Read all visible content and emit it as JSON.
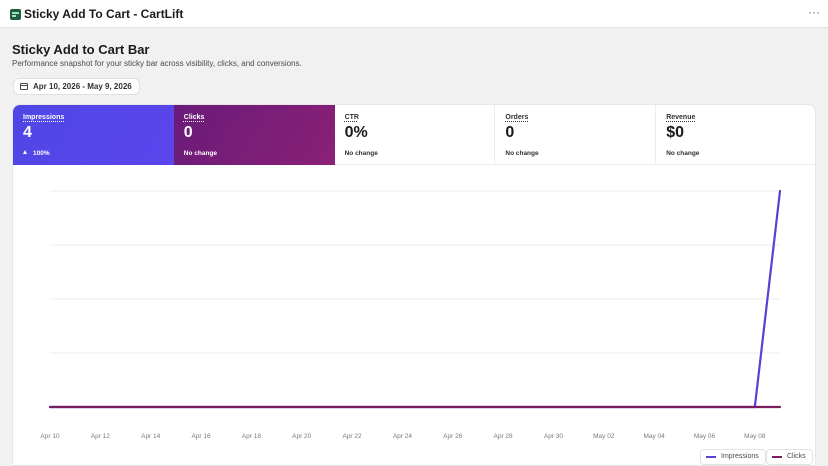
{
  "app": {
    "title": "Sticky Add To Cart - CartLift",
    "icon": "app-logo-icon",
    "more_icon": "more-icon",
    "more_glyph": "···"
  },
  "page": {
    "title": "Sticky Add to Cart Bar",
    "subtitle": "Performance snapshot for your sticky bar across visibility, clicks, and conversions."
  },
  "date_range": {
    "label": "Apr 10, 2026 - May 9, 2026",
    "icon": "calendar-icon"
  },
  "metrics": [
    {
      "label": "Impressions",
      "value": "4",
      "change": "100%",
      "trend": "up",
      "color": "#4f46e5"
    },
    {
      "label": "Clicks",
      "value": "0",
      "change": "No change",
      "color": "#7a1d78"
    },
    {
      "label": "CTR",
      "value": "0%",
      "change": "No change"
    },
    {
      "label": "Orders",
      "value": "0",
      "change": "No change"
    },
    {
      "label": "Revenue",
      "value": "$0",
      "change": "No change"
    }
  ],
  "chart_data": {
    "type": "line",
    "x_tick_labels": [
      "Apr 10",
      "Apr 12",
      "Apr 14",
      "Apr 16",
      "Apr 18",
      "Apr 20",
      "Apr 22",
      "Apr 24",
      "Apr 26",
      "Apr 28",
      "Apr 30",
      "May 02",
      "May 04",
      "May 06",
      "May 08"
    ],
    "x": [
      "2026-04-10",
      "2026-04-11",
      "2026-04-12",
      "2026-04-13",
      "2026-04-14",
      "2026-04-15",
      "2026-04-16",
      "2026-04-17",
      "2026-04-18",
      "2026-04-19",
      "2026-04-20",
      "2026-04-21",
      "2026-04-22",
      "2026-04-23",
      "2026-04-24",
      "2026-04-25",
      "2026-04-26",
      "2026-04-27",
      "2026-04-28",
      "2026-04-29",
      "2026-04-30",
      "2026-05-01",
      "2026-05-02",
      "2026-05-03",
      "2026-05-04",
      "2026-05-05",
      "2026-05-06",
      "2026-05-07",
      "2026-05-08",
      "2026-05-09"
    ],
    "series": [
      {
        "name": "Impressions",
        "color": "#5b3fd6",
        "values": [
          0,
          0,
          0,
          0,
          0,
          0,
          0,
          0,
          0,
          0,
          0,
          0,
          0,
          0,
          0,
          0,
          0,
          0,
          0,
          0,
          0,
          0,
          0,
          0,
          0,
          0,
          0,
          0,
          0,
          4
        ]
      },
      {
        "name": "Clicks",
        "color": "#7a1d5e",
        "values": [
          0,
          0,
          0,
          0,
          0,
          0,
          0,
          0,
          0,
          0,
          0,
          0,
          0,
          0,
          0,
          0,
          0,
          0,
          0,
          0,
          0,
          0,
          0,
          0,
          0,
          0,
          0,
          0,
          0,
          0
        ]
      }
    ],
    "ylim": [
      0,
      4
    ],
    "grid": true,
    "legend": "bottom-right"
  }
}
